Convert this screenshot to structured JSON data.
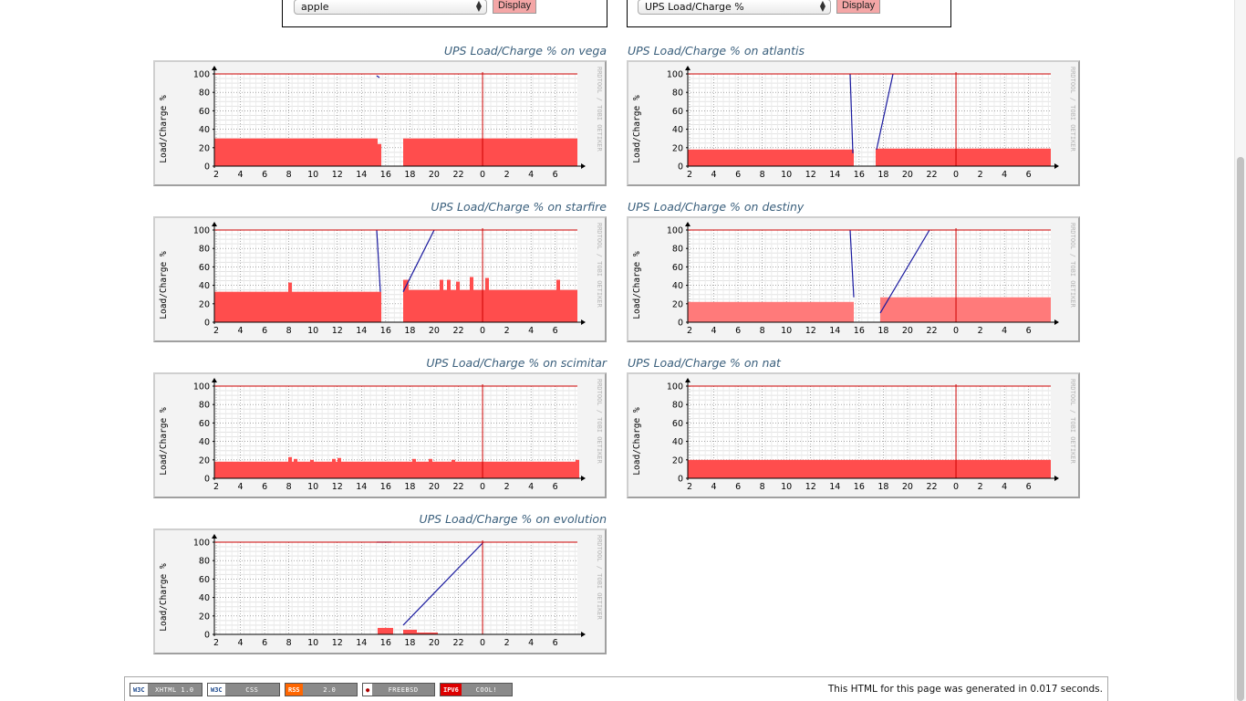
{
  "selectors": [
    {
      "value": "apple",
      "button_label": "Display"
    },
    {
      "value": "UPS Load/Charge %",
      "button_label": "Display"
    }
  ],
  "graphs": [
    {
      "title": "UPS Load/Charge % on vega"
    },
    {
      "title": "UPS Load/Charge % on atlantis"
    },
    {
      "title": "UPS Load/Charge % on starfire"
    },
    {
      "title": "UPS Load/Charge % on destiny"
    },
    {
      "title": "UPS Load/Charge % on scimitar"
    },
    {
      "title": "UPS Load/Charge % on nat"
    },
    {
      "title": "UPS Load/Charge % on evolution"
    }
  ],
  "graph_common": {
    "ylabel": "Load/Charge %",
    "watermark": "RRDTOOL / TOBI OETIKER",
    "y_ticks": [
      "0",
      "20",
      "40",
      "60",
      "80",
      "100"
    ],
    "x_ticks": [
      "2",
      "4",
      "6",
      "8",
      "10",
      "12",
      "14",
      "16",
      "18",
      "20",
      "22",
      "0",
      "2",
      "4",
      "6"
    ],
    "colors": {
      "load": "#ff4d4d",
      "charge": "#1a1a9f",
      "grid": "#444444",
      "limit": "#cc0000"
    }
  },
  "footer": {
    "badges": [
      {
        "left": "W3C",
        "right": "XHTML 1.0",
        "left_bg": "#ffffff",
        "left_fg": "#1e4a8e"
      },
      {
        "left": "W3C",
        "right": "CSS",
        "left_bg": "#ffffff",
        "left_fg": "#1e4a8e"
      },
      {
        "left": "RSS",
        "right": "2.0",
        "left_bg": "#ff6600",
        "left_fg": "#ffffff"
      },
      {
        "left": "●",
        "right": "FREEBSD",
        "left_bg": "#ffffff",
        "left_fg": "#aa0000"
      },
      {
        "left": "IPV6",
        "right": "COOL!",
        "left_bg": "#dd0000",
        "left_fg": "#ffffff"
      }
    ],
    "text": "This HTML for this page was generated in 0.017 seconds."
  }
}
